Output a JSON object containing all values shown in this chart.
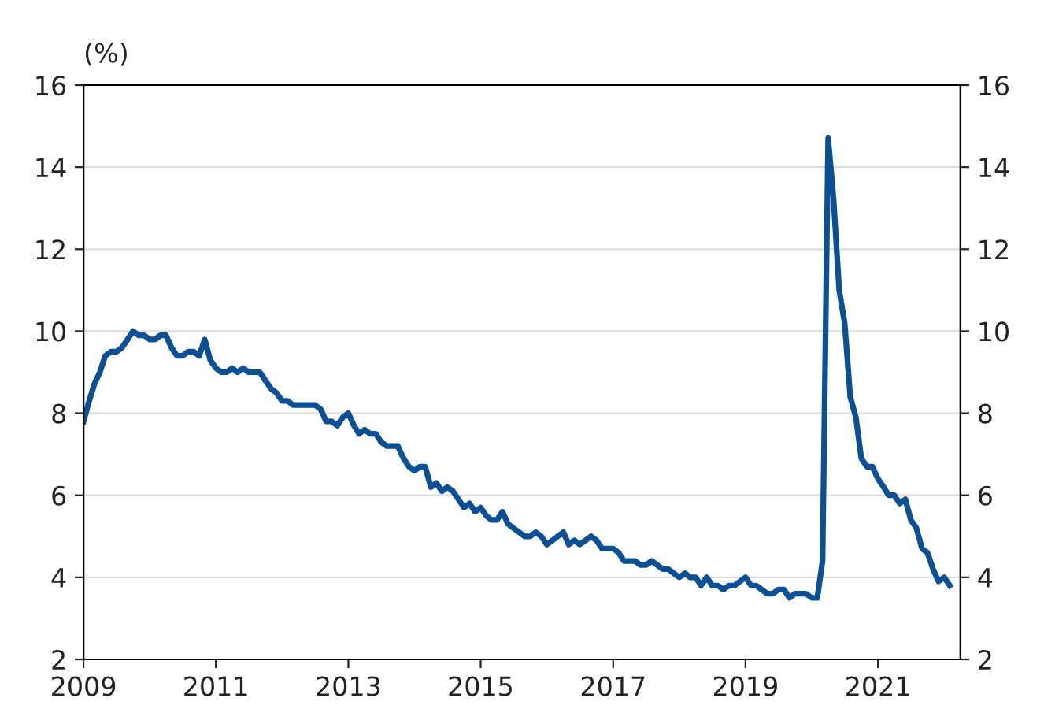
{
  "chart_data": {
    "type": "line",
    "ylabel": "(%)",
    "x": [
      "2009-01",
      "2009-02",
      "2009-03",
      "2009-04",
      "2009-05",
      "2009-06",
      "2009-07",
      "2009-08",
      "2009-09",
      "2009-10",
      "2009-11",
      "2009-12",
      "2010-01",
      "2010-02",
      "2010-03",
      "2010-04",
      "2010-05",
      "2010-06",
      "2010-07",
      "2010-08",
      "2010-09",
      "2010-10",
      "2010-11",
      "2010-12",
      "2011-01",
      "2011-02",
      "2011-03",
      "2011-04",
      "2011-05",
      "2011-06",
      "2011-07",
      "2011-08",
      "2011-09",
      "2011-10",
      "2011-11",
      "2011-12",
      "2012-01",
      "2012-02",
      "2012-03",
      "2012-04",
      "2012-05",
      "2012-06",
      "2012-07",
      "2012-08",
      "2012-09",
      "2012-10",
      "2012-11",
      "2012-12",
      "2013-01",
      "2013-02",
      "2013-03",
      "2013-04",
      "2013-05",
      "2013-06",
      "2013-07",
      "2013-08",
      "2013-09",
      "2013-10",
      "2013-11",
      "2013-12",
      "2014-01",
      "2014-02",
      "2014-03",
      "2014-04",
      "2014-05",
      "2014-06",
      "2014-07",
      "2014-08",
      "2014-09",
      "2014-10",
      "2014-11",
      "2014-12",
      "2015-01",
      "2015-02",
      "2015-03",
      "2015-04",
      "2015-05",
      "2015-06",
      "2015-07",
      "2015-08",
      "2015-09",
      "2015-10",
      "2015-11",
      "2015-12",
      "2016-01",
      "2016-02",
      "2016-03",
      "2016-04",
      "2016-05",
      "2016-06",
      "2016-07",
      "2016-08",
      "2016-09",
      "2016-10",
      "2016-11",
      "2016-12",
      "2017-01",
      "2017-02",
      "2017-03",
      "2017-04",
      "2017-05",
      "2017-06",
      "2017-07",
      "2017-08",
      "2017-09",
      "2017-10",
      "2017-11",
      "2017-12",
      "2018-01",
      "2018-02",
      "2018-03",
      "2018-04",
      "2018-05",
      "2018-06",
      "2018-07",
      "2018-08",
      "2018-09",
      "2018-10",
      "2018-11",
      "2018-12",
      "2019-01",
      "2019-02",
      "2019-03",
      "2019-04",
      "2019-05",
      "2019-06",
      "2019-07",
      "2019-08",
      "2019-09",
      "2019-10",
      "2019-11",
      "2019-12",
      "2020-01",
      "2020-02",
      "2020-03",
      "2020-04",
      "2020-05",
      "2020-06",
      "2020-07",
      "2020-08",
      "2020-09",
      "2020-10",
      "2020-11",
      "2020-12",
      "2021-01",
      "2021-02",
      "2021-03",
      "2021-04",
      "2021-05",
      "2021-06",
      "2021-07",
      "2021-08",
      "2021-09",
      "2021-10",
      "2021-11",
      "2021-12",
      "2022-01",
      "2022-02"
    ],
    "series": [
      {
        "color": "#0b4f94",
        "values": [
          7.8,
          8.3,
          8.7,
          9.0,
          9.4,
          9.5,
          9.5,
          9.6,
          9.8,
          10.0,
          9.9,
          9.9,
          9.8,
          9.8,
          9.9,
          9.9,
          9.6,
          9.4,
          9.4,
          9.5,
          9.5,
          9.4,
          9.8,
          9.3,
          9.1,
          9.0,
          9.0,
          9.1,
          9.0,
          9.1,
          9.0,
          9.0,
          9.0,
          8.8,
          8.6,
          8.5,
          8.3,
          8.3,
          8.2,
          8.2,
          8.2,
          8.2,
          8.2,
          8.1,
          7.8,
          7.8,
          7.7,
          7.9,
          8.0,
          7.7,
          7.5,
          7.6,
          7.5,
          7.5,
          7.3,
          7.2,
          7.2,
          7.2,
          6.9,
          6.7,
          6.6,
          6.7,
          6.7,
          6.2,
          6.3,
          6.1,
          6.2,
          6.1,
          5.9,
          5.7,
          5.8,
          5.6,
          5.7,
          5.5,
          5.4,
          5.4,
          5.6,
          5.3,
          5.2,
          5.1,
          5.0,
          5.0,
          5.1,
          5.0,
          4.8,
          4.9,
          5.0,
          5.1,
          4.8,
          4.9,
          4.8,
          4.9,
          5.0,
          4.9,
          4.7,
          4.7,
          4.7,
          4.6,
          4.4,
          4.4,
          4.4,
          4.3,
          4.3,
          4.4,
          4.3,
          4.2,
          4.2,
          4.1,
          4.0,
          4.1,
          4.0,
          4.0,
          3.8,
          4.0,
          3.8,
          3.8,
          3.7,
          3.8,
          3.8,
          3.9,
          4.0,
          3.8,
          3.8,
          3.7,
          3.6,
          3.6,
          3.7,
          3.7,
          3.5,
          3.6,
          3.6,
          3.6,
          3.5,
          3.5,
          4.4,
          14.7,
          13.2,
          11.0,
          10.2,
          8.4,
          7.9,
          6.9,
          6.7,
          6.7,
          6.4,
          6.2,
          6.0,
          6.0,
          5.8,
          5.9,
          5.4,
          5.2,
          4.7,
          4.6,
          4.2,
          3.9,
          4.0,
          3.8
        ]
      }
    ],
    "xlim": [
      "2009-01",
      "2022-04"
    ],
    "xticks": [
      {
        "value": "2009",
        "label": "2009"
      },
      {
        "value": "2011",
        "label": "2011"
      },
      {
        "value": "2013",
        "label": "2013"
      },
      {
        "value": "2015",
        "label": "2015"
      },
      {
        "value": "2017",
        "label": "2017"
      },
      {
        "value": "2019",
        "label": "2019"
      },
      {
        "value": "2021",
        "label": "2021"
      }
    ],
    "ylim": [
      2,
      16
    ],
    "yticks": [
      2,
      4,
      6,
      8,
      10,
      12,
      14,
      16
    ],
    "y2lim": [
      2,
      16
    ],
    "y2ticks": [
      2,
      4,
      6,
      8,
      10,
      12,
      14,
      16
    ],
    "grid": "y",
    "marker": "none",
    "line_style": "solid",
    "legend": false
  }
}
